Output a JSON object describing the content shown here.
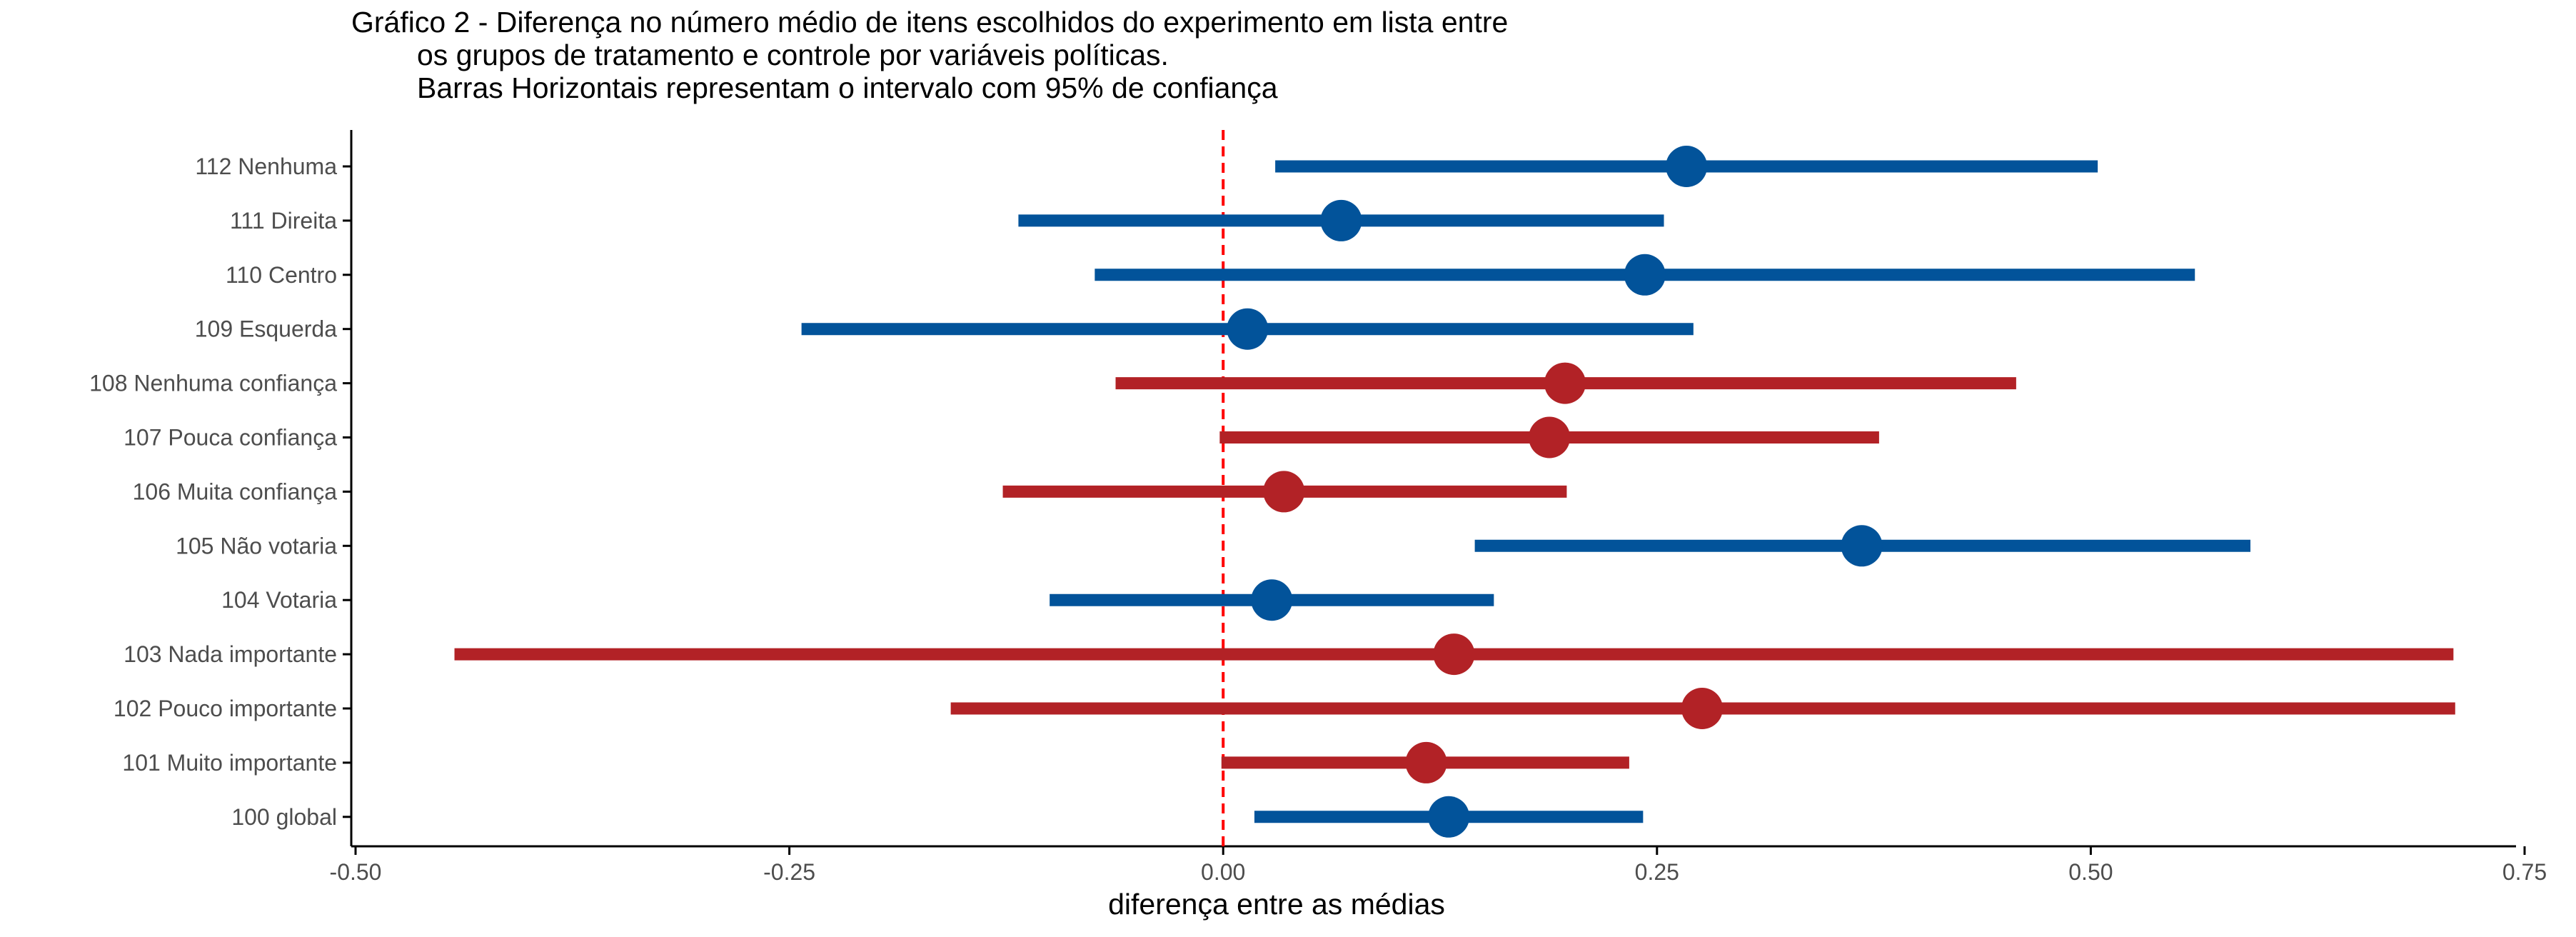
{
  "title_lines": [
    "Gráfico 2 - Diferença no número médio de itens escolhidos do experimento em lista entre",
    "os grupos de tratamento e controle por variáveis políticas.",
    "Barras Horizontais representam o intervalo com 95% de confiança"
  ],
  "colors": {
    "blue": "#02539A",
    "red": "#B22226",
    "reference_line": "#FF0000",
    "axis": "#000000",
    "tick_text": "#4D4D4D"
  },
  "chart_data": {
    "type": "forest",
    "title": "Gráfico 2 - Diferença no número médio de itens escolhidos do experimento em lista entre os grupos de tratamento e controle por variáveis políticas. Barras Horizontais representam o intervalo com 95% de confiança",
    "xlabel": "diferença entre as médias",
    "ylabel": "",
    "xlim": [
      -0.5,
      0.75
    ],
    "xticks": [
      -0.5,
      -0.25,
      0,
      0.25,
      0.5,
      0.75
    ],
    "xtick_labels": [
      "-0.50",
      "-0.25",
      "0.00",
      "0.25",
      "0.50",
      "0.75"
    ],
    "reference_line": 0,
    "grid": false,
    "legend": "none",
    "rows": [
      {
        "label": "112 Nenhuma",
        "estimate": 0.267,
        "lower": 0.03,
        "upper": 0.504,
        "color": "blue"
      },
      {
        "label": "111 Direita",
        "estimate": 0.068,
        "lower": -0.118,
        "upper": 0.254,
        "color": "blue"
      },
      {
        "label": "110 Centro",
        "estimate": 0.243,
        "lower": -0.074,
        "upper": 0.56,
        "color": "blue"
      },
      {
        "label": "109 Esquerda",
        "estimate": 0.014,
        "lower": -0.243,
        "upper": 0.271,
        "color": "blue"
      },
      {
        "label": "108 Nenhuma confiança",
        "estimate": 0.197,
        "lower": -0.062,
        "upper": 0.457,
        "color": "red"
      },
      {
        "label": "107 Pouca confiança",
        "estimate": 0.188,
        "lower": -0.002,
        "upper": 0.378,
        "color": "red"
      },
      {
        "label": "106 Muita confiança",
        "estimate": 0.035,
        "lower": -0.127,
        "upper": 0.198,
        "color": "red"
      },
      {
        "label": "105 Não votaria",
        "estimate": 0.368,
        "lower": 0.145,
        "upper": 0.592,
        "color": "blue"
      },
      {
        "label": "104 Votaria",
        "estimate": 0.028,
        "lower": -0.1,
        "upper": 0.156,
        "color": "blue"
      },
      {
        "label": "103 Nada importante",
        "estimate": 0.133,
        "lower": -0.443,
        "upper": 0.709,
        "color": "red"
      },
      {
        "label": "102 Pouco importante",
        "estimate": 0.276,
        "lower": -0.157,
        "upper": 0.71,
        "color": "red"
      },
      {
        "label": "101 Muito importante",
        "estimate": 0.117,
        "lower": -0.001,
        "upper": 0.234,
        "color": "red"
      },
      {
        "label": "100 global",
        "estimate": 0.13,
        "lower": 0.018,
        "upper": 0.242,
        "color": "blue"
      }
    ]
  }
}
